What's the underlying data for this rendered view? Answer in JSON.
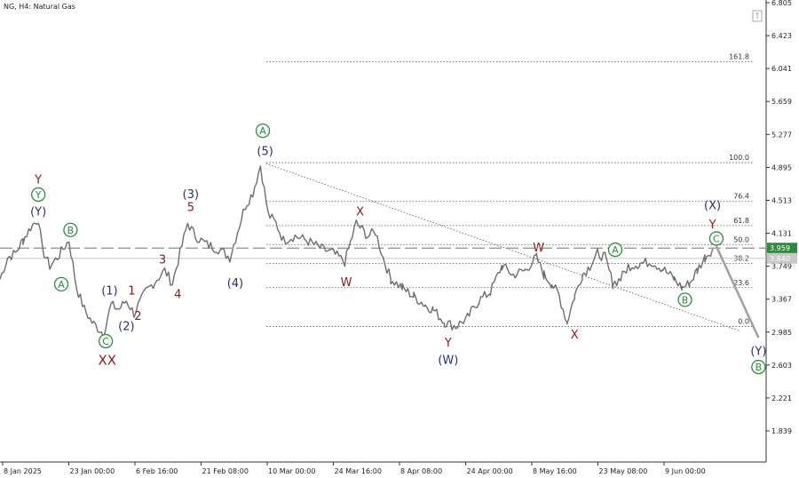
{
  "chart_data": {
    "type": "line",
    "title": "NG, H4: Natural Gas",
    "ylim": [
      1.75,
      6.805
    ],
    "y_ticks": [
      "6.805",
      "6.423",
      "6.041",
      "5.659",
      "5.277",
      "4.895",
      "4.513",
      "4.131",
      "3.749",
      "3.367",
      "2.985",
      "2.603",
      "2.221",
      "1.839"
    ],
    "x_ticks": [
      "8 Jan 2025",
      "23 Jan 00:00",
      "6 Feb 16:00",
      "21 Feb 08:00",
      "10 Mar 00:00",
      "24 Mar 16:00",
      "8 Apr 08:00",
      "24 Apr 00:00",
      "8 May 16:00",
      "23 May 08:00",
      "9 Jun 00:00"
    ],
    "current_price": "3.959",
    "current_price_line": 3.959,
    "bid_price": "3.840",
    "bid_line": 3.84,
    "fib_levels": [
      {
        "label": "161.8",
        "value": 6.12
      },
      {
        "label": "100.0",
        "value": 4.95
      },
      {
        "label": "76.4",
        "value": 4.5
      },
      {
        "label": "61.8",
        "value": 4.22
      },
      {
        "label": "50.0",
        "value": 4.0
      },
      {
        "label": "38.2",
        "value": 3.78
      },
      {
        "label": "23.6",
        "value": 3.5
      },
      {
        "label": "0.0",
        "value": 3.05
      }
    ],
    "series": [
      {
        "values": [
          {
            "x": 0,
            "y": 3.6
          },
          {
            "x": 0.01,
            "y": 3.85
          },
          {
            "x": 0.02,
            "y": 3.9
          },
          {
            "x": 0.03,
            "y": 4.05
          },
          {
            "x": 0.04,
            "y": 4.2
          },
          {
            "x": 0.05,
            "y": 4.3
          },
          {
            "x": 0.055,
            "y": 3.95
          },
          {
            "x": 0.065,
            "y": 3.75
          },
          {
            "x": 0.075,
            "y": 3.85
          },
          {
            "x": 0.09,
            "y": 4.05
          },
          {
            "x": 0.1,
            "y": 3.5
          },
          {
            "x": 0.11,
            "y": 3.25
          },
          {
            "x": 0.12,
            "y": 3.1
          },
          {
            "x": 0.135,
            "y": 2.97
          },
          {
            "x": 0.145,
            "y": 3.3
          },
          {
            "x": 0.155,
            "y": 3.25
          },
          {
            "x": 0.165,
            "y": 3.35
          },
          {
            "x": 0.175,
            "y": 3.2
          },
          {
            "x": 0.19,
            "y": 3.45
          },
          {
            "x": 0.2,
            "y": 3.55
          },
          {
            "x": 0.215,
            "y": 3.7
          },
          {
            "x": 0.225,
            "y": 3.55
          },
          {
            "x": 0.235,
            "y": 3.9
          },
          {
            "x": 0.245,
            "y": 4.25
          },
          {
            "x": 0.255,
            "y": 4.1
          },
          {
            "x": 0.27,
            "y": 4.0
          },
          {
            "x": 0.285,
            "y": 3.95
          },
          {
            "x": 0.3,
            "y": 3.85
          },
          {
            "x": 0.31,
            "y": 4.15
          },
          {
            "x": 0.32,
            "y": 4.45
          },
          {
            "x": 0.33,
            "y": 4.6
          },
          {
            "x": 0.34,
            "y": 4.92
          },
          {
            "x": 0.35,
            "y": 4.35
          },
          {
            "x": 0.36,
            "y": 4.25
          },
          {
            "x": 0.37,
            "y": 4.05
          },
          {
            "x": 0.385,
            "y": 4.1
          },
          {
            "x": 0.4,
            "y": 4.05
          },
          {
            "x": 0.42,
            "y": 3.95
          },
          {
            "x": 0.435,
            "y": 3.9
          },
          {
            "x": 0.45,
            "y": 3.8
          },
          {
            "x": 0.465,
            "y": 4.25
          },
          {
            "x": 0.48,
            "y": 4.1
          },
          {
            "x": 0.49,
            "y": 4.15
          },
          {
            "x": 0.5,
            "y": 3.85
          },
          {
            "x": 0.51,
            "y": 3.6
          },
          {
            "x": 0.525,
            "y": 3.5
          },
          {
            "x": 0.54,
            "y": 3.4
          },
          {
            "x": 0.555,
            "y": 3.3
          },
          {
            "x": 0.565,
            "y": 3.25
          },
          {
            "x": 0.58,
            "y": 3.1
          },
          {
            "x": 0.595,
            "y": 3.05
          },
          {
            "x": 0.61,
            "y": 3.15
          },
          {
            "x": 0.625,
            "y": 3.35
          },
          {
            "x": 0.64,
            "y": 3.45
          },
          {
            "x": 0.655,
            "y": 3.75
          },
          {
            "x": 0.67,
            "y": 3.65
          },
          {
            "x": 0.685,
            "y": 3.7
          },
          {
            "x": 0.7,
            "y": 3.85
          },
          {
            "x": 0.71,
            "y": 3.65
          },
          {
            "x": 0.72,
            "y": 3.55
          },
          {
            "x": 0.73,
            "y": 3.4
          },
          {
            "x": 0.74,
            "y": 3.1
          },
          {
            "x": 0.75,
            "y": 3.4
          },
          {
            "x": 0.76,
            "y": 3.65
          },
          {
            "x": 0.77,
            "y": 3.75
          },
          {
            "x": 0.78,
            "y": 3.9
          },
          {
            "x": 0.79,
            "y": 3.85
          },
          {
            "x": 0.8,
            "y": 3.55
          },
          {
            "x": 0.81,
            "y": 3.6
          },
          {
            "x": 0.82,
            "y": 3.75
          },
          {
            "x": 0.835,
            "y": 3.78
          },
          {
            "x": 0.85,
            "y": 3.8
          },
          {
            "x": 0.865,
            "y": 3.72
          },
          {
            "x": 0.88,
            "y": 3.6
          },
          {
            "x": 0.89,
            "y": 3.5
          },
          {
            "x": 0.9,
            "y": 3.55
          },
          {
            "x": 0.91,
            "y": 3.7
          },
          {
            "x": 0.92,
            "y": 3.85
          },
          {
            "x": 0.93,
            "y": 3.95
          }
        ]
      }
    ],
    "wave_labels": [
      {
        "text": "Y",
        "x": 0.05,
        "y": 4.75,
        "color": "#8b1a1a",
        "style": "plain"
      },
      {
        "text": "Y",
        "x": 0.05,
        "y": 4.58,
        "color": "#2e8b3d",
        "style": "circle"
      },
      {
        "text": "(Y)",
        "x": 0.05,
        "y": 4.38,
        "color": "#2b2f7a",
        "style": "plain"
      },
      {
        "text": "B",
        "x": 0.092,
        "y": 4.17,
        "color": "#2e8b3d",
        "style": "circle"
      },
      {
        "text": "A",
        "x": 0.08,
        "y": 3.54,
        "color": "#2e8b3d",
        "style": "circle"
      },
      {
        "text": "(1)",
        "x": 0.143,
        "y": 3.46,
        "color": "#2b2f7a",
        "style": "plain"
      },
      {
        "text": "1",
        "x": 0.172,
        "y": 3.46,
        "color": "#8b1a1a",
        "style": "plain"
      },
      {
        "text": "2",
        "x": 0.18,
        "y": 3.17,
        "color": "#8b1a1a",
        "style": "plain"
      },
      {
        "text": "(2)",
        "x": 0.165,
        "y": 3.05,
        "color": "#2b2f7a",
        "style": "plain"
      },
      {
        "text": "C",
        "x": 0.138,
        "y": 2.88,
        "color": "#2e8b3d",
        "style": "circle"
      },
      {
        "text": "XX",
        "x": 0.14,
        "y": 2.65,
        "color": "#8b1a1a",
        "style": "plain"
      },
      {
        "text": "3",
        "x": 0.212,
        "y": 3.82,
        "color": "#8b1a1a",
        "style": "plain"
      },
      {
        "text": "4",
        "x": 0.232,
        "y": 3.42,
        "color": "#8b1a1a",
        "style": "plain"
      },
      {
        "text": "(3)",
        "x": 0.249,
        "y": 4.58,
        "color": "#2b2f7a",
        "style": "plain"
      },
      {
        "text": "5",
        "x": 0.249,
        "y": 4.43,
        "color": "#8b1a1a",
        "style": "plain"
      },
      {
        "text": "(4)",
        "x": 0.307,
        "y": 3.55,
        "color": "#2b2f7a",
        "style": "plain"
      },
      {
        "text": "A",
        "x": 0.343,
        "y": 5.32,
        "color": "#2e8b3d",
        "style": "circle"
      },
      {
        "text": "(5)",
        "x": 0.346,
        "y": 5.08,
        "color": "#2b2f7a",
        "style": "plain"
      },
      {
        "text": "X",
        "x": 0.47,
        "y": 4.38,
        "color": "#8b1a1a",
        "style": "plain"
      },
      {
        "text": "W",
        "x": 0.452,
        "y": 3.56,
        "color": "#8b1a1a",
        "style": "plain"
      },
      {
        "text": "Y",
        "x": 0.585,
        "y": 2.86,
        "color": "#8b1a1a",
        "style": "plain"
      },
      {
        "text": "(W)",
        "x": 0.585,
        "y": 2.66,
        "color": "#2b2f7a",
        "style": "plain"
      },
      {
        "text": "W",
        "x": 0.703,
        "y": 3.96,
        "color": "#8b1a1a",
        "style": "plain"
      },
      {
        "text": "X",
        "x": 0.75,
        "y": 2.95,
        "color": "#8b1a1a",
        "style": "plain"
      },
      {
        "text": "A",
        "x": 0.803,
        "y": 3.94,
        "color": "#2e8b3d",
        "style": "circle"
      },
      {
        "text": "B",
        "x": 0.894,
        "y": 3.36,
        "color": "#2e8b3d",
        "style": "circle"
      },
      {
        "text": "(X)",
        "x": 0.93,
        "y": 4.45,
        "color": "#2b2f7a",
        "style": "plain"
      },
      {
        "text": "Y",
        "x": 0.93,
        "y": 4.23,
        "color": "#8b1a1a",
        "style": "plain"
      },
      {
        "text": "C",
        "x": 0.935,
        "y": 4.07,
        "color": "#2e8b3d",
        "style": "circle"
      },
      {
        "text": "(Y)",
        "x": 0.99,
        "y": 2.76,
        "color": "#2b2f7a",
        "style": "plain"
      },
      {
        "text": "B",
        "x": 0.99,
        "y": 2.58,
        "color": "#2e8b3d",
        "style": "circle"
      }
    ],
    "channel_line": [
      {
        "x": 0.347,
        "y": 4.94
      },
      {
        "x": 0.965,
        "y": 3.0
      }
    ],
    "projection": [
      {
        "x": 0.935,
        "y": 3.98
      },
      {
        "x": 0.99,
        "y": 2.92
      }
    ],
    "colors": {
      "price_line": "#6d6d6d",
      "current_price_tag": "#2e8b3d",
      "bid_tag": "#c8c8c8",
      "dashed_line": "#6aa66a",
      "projection": "#a0a0a0",
      "red_label": "#8b1a1a",
      "green_label": "#2e8b3d",
      "blue_label": "#2b2f7a"
    }
  }
}
